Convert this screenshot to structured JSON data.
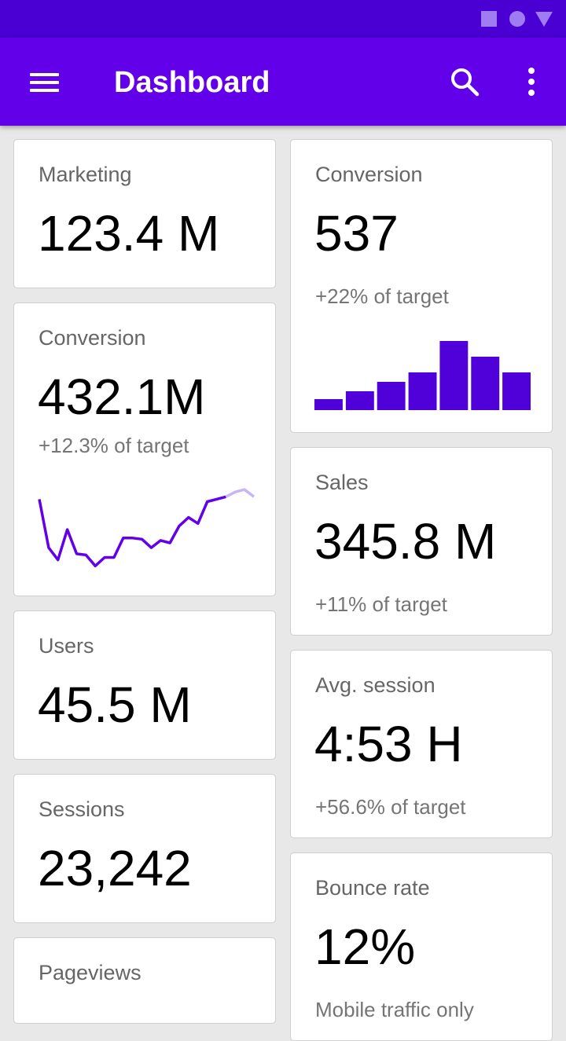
{
  "app_bar": {
    "title": "Dashboard"
  },
  "accent_color": "#6200ea",
  "status_bar_color": "#4a00d3",
  "icons": [
    "menu-icon",
    "search-icon",
    "more-vert-icon",
    "status-square-icon",
    "status-circle-icon",
    "status-triangle-icon"
  ],
  "cards": {
    "marketing": {
      "label": "Marketing",
      "value": "123.4 M"
    },
    "conversion_left": {
      "label": "Conversion",
      "value": "432.1M",
      "sub": "+12.3% of target"
    },
    "users": {
      "label": "Users",
      "value": "45.5 M"
    },
    "sessions": {
      "label": "Sessions",
      "value": "23,242"
    },
    "pageviews": {
      "label": "Pageviews"
    },
    "conversion_right": {
      "label": "Conversion",
      "value": "537",
      "sub": "+22% of target"
    },
    "sales": {
      "label": "Sales",
      "value": "345.8 M",
      "sub": "+11% of target"
    },
    "avg_session": {
      "label": "Avg. session",
      "value": "4:53 H",
      "sub": "+56.6% of target"
    },
    "bounce_rate": {
      "label": "Bounce rate",
      "value": "12%",
      "sub": "Mobile traffic only"
    }
  },
  "sparkline_values": [
    60,
    20,
    10,
    35,
    15,
    14,
    5,
    12,
    12,
    28,
    28,
    27,
    20,
    26,
    24,
    38,
    45,
    40,
    58,
    60,
    62,
    66,
    68,
    62
  ],
  "sparkline_highlight_from": 20,
  "bar_values": [
    7,
    12,
    18,
    24,
    44,
    34,
    24
  ]
}
